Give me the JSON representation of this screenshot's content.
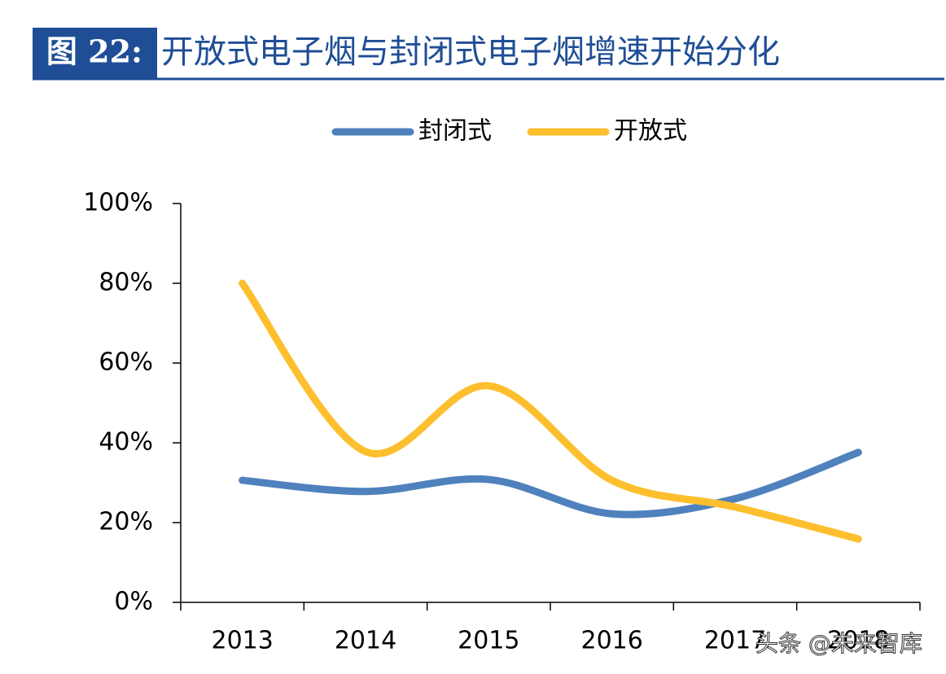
{
  "chart_data": {
    "type": "line",
    "figure_label": "图 22:",
    "title": "开放式电子烟与封闭式电子烟增速开始分化",
    "categories": [
      "2013",
      "2014",
      "2015",
      "2016",
      "2017",
      "2018"
    ],
    "series": [
      {
        "name": "封闭式",
        "color": "#4f81bd",
        "values": [
          30.6,
          27.8,
          30.8,
          22.2,
          26,
          37.6
        ]
      },
      {
        "name": "开放式",
        "color": "#fdbf2d",
        "values": [
          80,
          37.8,
          54.3,
          30.6,
          23.9,
          15.9
        ]
      }
    ],
    "ylim": [
      0,
      100
    ],
    "yticks": [
      {
        "value": 0,
        "label": "0%"
      },
      {
        "value": 20,
        "label": "20%"
      },
      {
        "value": 40,
        "label": "40%"
      },
      {
        "value": 60,
        "label": "60%"
      },
      {
        "value": 80,
        "label": "80%"
      },
      {
        "value": 100,
        "label": "100%"
      }
    ],
    "legend": "top",
    "watermark": "头条 @未来智库"
  }
}
